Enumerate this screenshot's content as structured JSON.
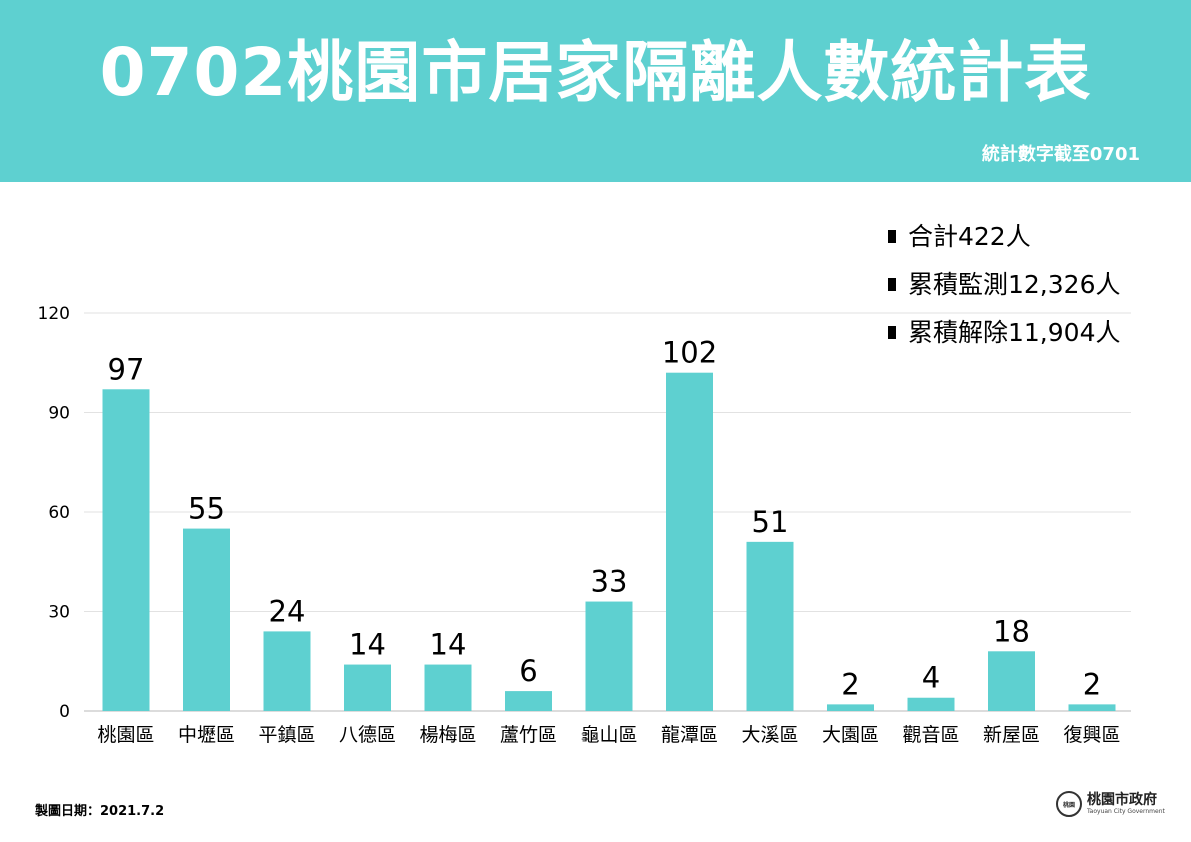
{
  "header": {
    "title": "0702桃園市居家隔離人數統計表",
    "subtitle": "統計數字截至0701",
    "background_color": "#5ed0d0"
  },
  "stats": [
    {
      "label": "合計422人"
    },
    {
      "label": "累積監測12,326人"
    },
    {
      "label": "累積解除11,904人"
    }
  ],
  "chart_data": {
    "type": "bar",
    "categories": [
      "桃園區",
      "中壢區",
      "平鎮區",
      "八德區",
      "楊梅區",
      "蘆竹區",
      "龜山區",
      "龍潭區",
      "大溪區",
      "大園區",
      "觀音區",
      "新屋區",
      "復興區"
    ],
    "values": [
      97,
      55,
      24,
      14,
      14,
      6,
      33,
      102,
      51,
      2,
      4,
      18,
      2
    ],
    "data_labels": [
      "97",
      "55",
      "24",
      "14",
      "14",
      "6",
      "33",
      "102",
      "51",
      "2",
      "4",
      "18",
      "2"
    ],
    "y_ticks": [
      0,
      30,
      60,
      90,
      120
    ],
    "y_tick_labels": [
      "0",
      "30",
      "60",
      "90",
      "120"
    ],
    "ylim": [
      0,
      120
    ],
    "grid": true,
    "bar_color": "#5ed0d0",
    "title": "",
    "xlabel": "",
    "ylabel": ""
  },
  "footer": {
    "date_text": "製圖日期：2021.7.2",
    "logo_mark": "桃園",
    "logo_name": "桃園市政府",
    "logo_en": "Taoyuan City Government"
  }
}
